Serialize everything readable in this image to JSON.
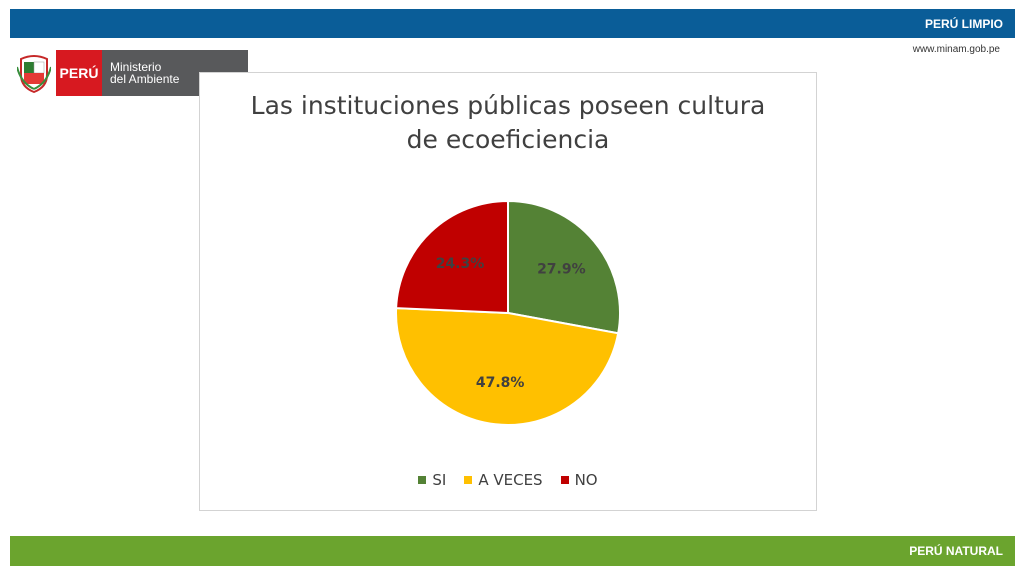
{
  "header": {
    "label": "PERÚ LIMPIO",
    "url": "www.minam.gob.pe"
  },
  "footer": {
    "label": "PERÚ NATURAL"
  },
  "logo": {
    "country": "PERÚ",
    "ministry_line1": "Ministerio",
    "ministry_line2": "del Ambiente"
  },
  "colors": {
    "top_bar": "#0a5d98",
    "bottom_bar": "#6ba42e",
    "logo_red": "#d71920",
    "logo_gray": "#58595b"
  },
  "chart_data": {
    "type": "pie",
    "title_lines": [
      "Las instituciones públicas poseen cultura",
      "de ecoeficiencia"
    ],
    "categories": [
      "SI",
      "A VECES",
      "NO"
    ],
    "values": [
      27.9,
      47.8,
      24.3
    ],
    "labels": [
      "27.9%",
      "47.8%",
      "24.3%"
    ],
    "colors": [
      "#548235",
      "#ffc000",
      "#c00000"
    ],
    "legend_position": "bottom"
  }
}
